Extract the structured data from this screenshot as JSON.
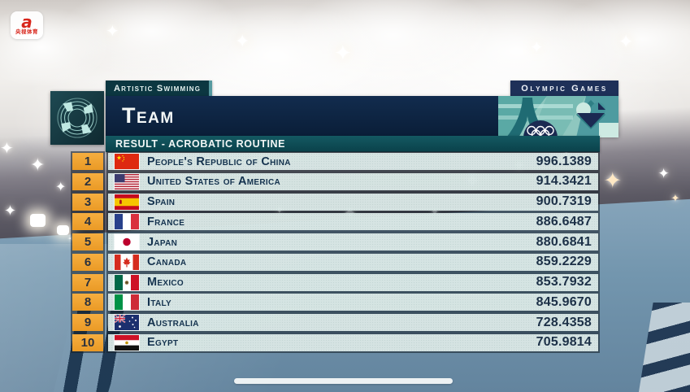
{
  "branding": {
    "channel_glyph": "a",
    "channel_caption": "央视体育"
  },
  "header": {
    "discipline": "Artistic Swimming",
    "event_title": "Team",
    "games_label": "Olympic Games",
    "result_title": "Result - Acrobatic Routine"
  },
  "table": {
    "rows": [
      {
        "rank": "1",
        "flag": "cn",
        "country": "People's Republic of China",
        "score": "996.1389"
      },
      {
        "rank": "2",
        "flag": "us",
        "country": "United States of America",
        "score": "914.3421"
      },
      {
        "rank": "3",
        "flag": "es",
        "country": "Spain",
        "score": "900.7319"
      },
      {
        "rank": "4",
        "flag": "fr",
        "country": "France",
        "score": "886.6487"
      },
      {
        "rank": "5",
        "flag": "jp",
        "country": "Japan",
        "score": "880.6841"
      },
      {
        "rank": "6",
        "flag": "ca",
        "country": "Canada",
        "score": "859.2229"
      },
      {
        "rank": "7",
        "flag": "mx",
        "country": "Mexico",
        "score": "853.7932"
      },
      {
        "rank": "8",
        "flag": "it",
        "country": "Italy",
        "score": "845.9670"
      },
      {
        "rank": "9",
        "flag": "au",
        "country": "Australia",
        "score": "728.4358"
      },
      {
        "rank": "10",
        "flag": "eg",
        "country": "Egypt",
        "score": "705.9814"
      }
    ]
  },
  "colors": {
    "rank_orange": "#f0a233",
    "band_navy": "#0e2645",
    "band_teal": "#0e4d56",
    "tag_teal": "#0c3741",
    "row_light": "#dfeceb",
    "text_dark_navy": "#14324e",
    "channel_red": "#d8261c"
  }
}
